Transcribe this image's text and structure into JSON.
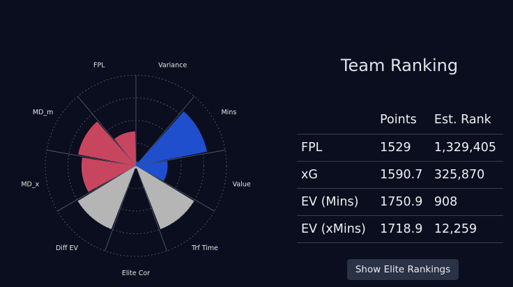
{
  "colors": {
    "background": "#0a0e1e",
    "red": "#c84560",
    "blue": "#1f4fcc",
    "grey": "#b5b5b5",
    "grid": "#5a6270"
  },
  "chart_data": {
    "type": "polar-bar",
    "title": "",
    "categories": [
      "Variance",
      "Mins",
      "Value",
      "Trf Time",
      "Elite Cor",
      "Diff EV",
      "MD_x",
      "MD_m",
      "FPL"
    ],
    "values": [
      0.05,
      0.8,
      0.35,
      0.75,
      0.03,
      0.75,
      0.6,
      0.65,
      0.38
    ],
    "groups": [
      "blue",
      "blue",
      "blue",
      "grey",
      "grey",
      "grey",
      "red",
      "red",
      "red"
    ],
    "range": [
      0,
      1
    ],
    "grid": true
  },
  "panel": {
    "title": "Team Ranking",
    "columns": [
      "",
      "Points",
      "Est. Rank"
    ],
    "rows": [
      {
        "label": "FPL",
        "points": "1529",
        "rank": "1,329,405"
      },
      {
        "label": "xG",
        "points": "1590.7",
        "rank": "325,870"
      },
      {
        "label": "EV (Mins)",
        "points": "1750.9",
        "rank": "908"
      },
      {
        "label": "EV (xMins)",
        "points": "1718.9",
        "rank": "12,259"
      }
    ],
    "button_label": "Show Elite Rankings"
  }
}
